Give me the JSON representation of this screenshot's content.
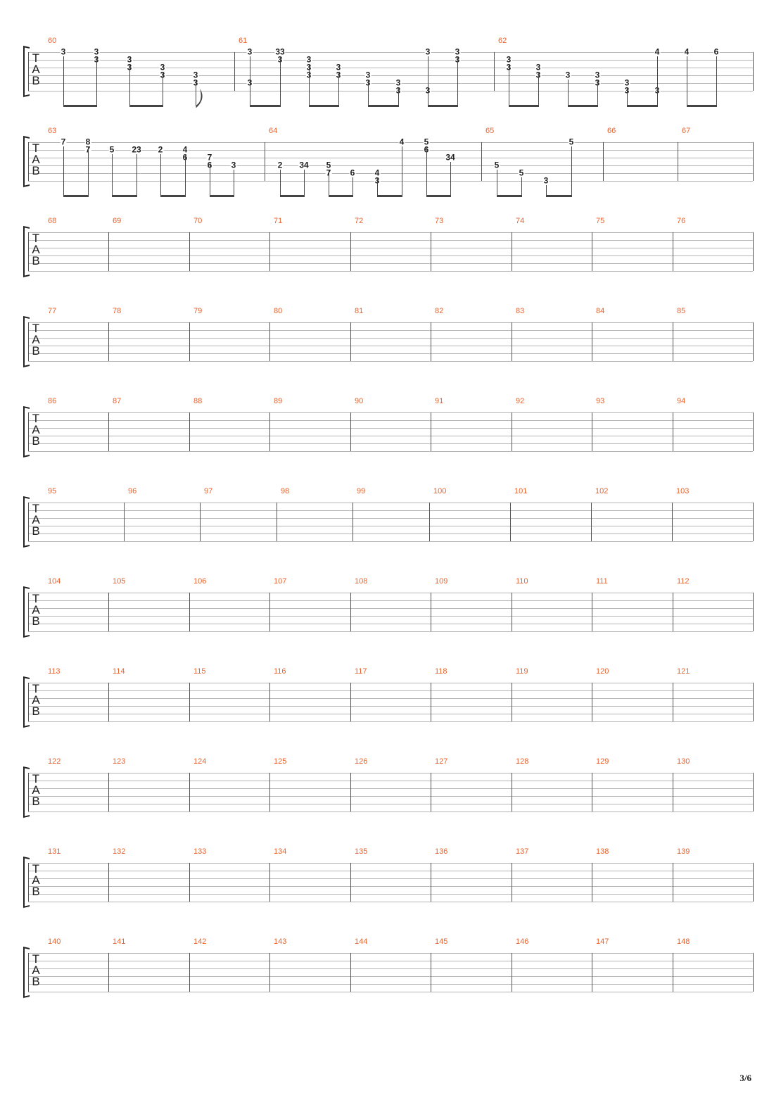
{
  "tab_label": [
    "T",
    "A",
    "B"
  ],
  "page_number": "3/6",
  "systems": [
    {
      "measures": [
        {
          "number": "60",
          "notes": [
            {
              "pos": 0,
              "frets": [
                [
                  0,
                  "3"
                ]
              ]
            },
            {
              "pos": 1,
              "frets": [
                [
                  0,
                  "3"
                ],
                [
                  1,
                  "3"
                ]
              ]
            },
            {
              "pos": 2,
              "frets": [
                [
                  1,
                  "3"
                ],
                [
                  2,
                  "3"
                ]
              ]
            },
            {
              "pos": 3,
              "frets": [
                [
                  2,
                  "3"
                ],
                [
                  3,
                  "3"
                ]
              ]
            },
            {
              "pos": 4,
              "frets": [
                [
                  3,
                  "3"
                ],
                [
                  4,
                  "3"
                ]
              ]
            }
          ]
        },
        {
          "number": "61",
          "notes": [
            {
              "pos": 0,
              "frets": [
                [
                  0,
                  "3"
                ],
                [
                  4,
                  "3"
                ]
              ]
            },
            {
              "pos": 1,
              "frets": [
                [
                  0,
                  "33"
                ],
                [
                  1,
                  "3"
                ]
              ]
            },
            {
              "pos": 2,
              "frets": [
                [
                  1,
                  "3"
                ],
                [
                  2,
                  "3"
                ],
                [
                  3,
                  "3"
                ]
              ]
            },
            {
              "pos": 3,
              "frets": [
                [
                  2,
                  "3"
                ],
                [
                  3,
                  "3"
                ]
              ]
            },
            {
              "pos": 4,
              "frets": [
                [
                  3,
                  "3"
                ],
                [
                  4,
                  "3"
                ]
              ]
            },
            {
              "pos": 5,
              "frets": [
                [
                  4,
                  "3"
                ],
                [
                  5,
                  "3"
                ]
              ]
            },
            {
              "pos": 6,
              "frets": [
                [
                  0,
                  "3"
                ],
                [
                  5,
                  "3"
                ]
              ]
            },
            {
              "pos": 7,
              "frets": [
                [
                  0,
                  "3"
                ],
                [
                  1,
                  "3"
                ]
              ]
            }
          ]
        },
        {
          "number": "62",
          "notes": [
            {
              "pos": 0,
              "frets": [
                [
                  1,
                  "3"
                ],
                [
                  2,
                  "3"
                ]
              ]
            },
            {
              "pos": 1,
              "frets": [
                [
                  2,
                  "3"
                ],
                [
                  3,
                  "3"
                ]
              ]
            },
            {
              "pos": 2,
              "frets": [
                [
                  3,
                  "3"
                ]
              ]
            },
            {
              "pos": 3,
              "frets": [
                [
                  3,
                  "3"
                ],
                [
                  4,
                  "3"
                ]
              ]
            },
            {
              "pos": 4,
              "frets": [
                [
                  4,
                  "3"
                ],
                [
                  5,
                  "3"
                ]
              ]
            },
            {
              "pos": 5,
              "frets": [
                [
                  0,
                  "4"
                ],
                [
                  5,
                  "3"
                ]
              ]
            },
            {
              "pos": 6,
              "frets": [
                [
                  0,
                  "4"
                ]
              ]
            },
            {
              "pos": 7,
              "frets": [
                [
                  0,
                  "6"
                ]
              ]
            }
          ]
        }
      ]
    },
    {
      "measures": [
        {
          "number": "63",
          "notes": [
            {
              "pos": 0,
              "frets": [
                [
                  0,
                  "7"
                ]
              ]
            },
            {
              "pos": 1,
              "frets": [
                [
                  0,
                  "8"
                ],
                [
                  1,
                  "7"
                ]
              ]
            },
            {
              "pos": 2,
              "frets": [
                [
                  1,
                  "5"
                ]
              ]
            },
            {
              "pos": 3,
              "frets": [
                [
                  1,
                  "23"
                ]
              ]
            },
            {
              "pos": 4,
              "frets": [
                [
                  1,
                  "2"
                ]
              ]
            },
            {
              "pos": 5,
              "frets": [
                [
                  1,
                  "4"
                ],
                [
                  2,
                  "6"
                ]
              ]
            },
            {
              "pos": 6,
              "frets": [
                [
                  2,
                  "7"
                ],
                [
                  3,
                  "6"
                ]
              ]
            },
            {
              "pos": 7,
              "frets": [
                [
                  3,
                  "3"
                ]
              ]
            }
          ]
        },
        {
          "number": "64",
          "notes": [
            {
              "pos": 0,
              "frets": [
                [
                  3,
                  "2"
                ]
              ]
            },
            {
              "pos": 1,
              "frets": [
                [
                  3,
                  "34"
                ]
              ]
            },
            {
              "pos": 2,
              "frets": [
                [
                  3,
                  "5"
                ],
                [
                  4,
                  "7"
                ]
              ]
            },
            {
              "pos": 3,
              "frets": [
                [
                  4,
                  "6"
                ]
              ]
            },
            {
              "pos": 4,
              "frets": [
                [
                  4,
                  "4"
                ],
                [
                  5,
                  "3"
                ]
              ]
            },
            {
              "pos": 5,
              "frets": [
                [
                  0,
                  "4"
                ]
              ]
            },
            {
              "pos": 6,
              "frets": [
                [
                  0,
                  "5"
                ],
                [
                  1,
                  "6"
                ]
              ]
            },
            {
              "pos": 7,
              "frets": [
                [
                  2,
                  "34"
                ]
              ]
            }
          ]
        },
        {
          "number": "65",
          "notes": [
            {
              "pos": 0,
              "frets": [
                [
                  3,
                  "5"
                ]
              ]
            },
            {
              "pos": 1,
              "frets": [
                [
                  4,
                  "5"
                ]
              ]
            },
            {
              "pos": 2,
              "frets": [
                [
                  5,
                  "3"
                ]
              ]
            },
            {
              "pos": 3,
              "frets": [
                [
                  0,
                  "5"
                ]
              ]
            }
          ]
        },
        {
          "number": "66",
          "notes": []
        },
        {
          "number": "67",
          "notes": []
        }
      ]
    },
    {
      "measures": [
        {
          "number": "68"
        },
        {
          "number": "69"
        },
        {
          "number": "70"
        },
        {
          "number": "71"
        },
        {
          "number": "72"
        },
        {
          "number": "73"
        },
        {
          "number": "74"
        },
        {
          "number": "75"
        },
        {
          "number": "76"
        }
      ]
    },
    {
      "measures": [
        {
          "number": "77"
        },
        {
          "number": "78"
        },
        {
          "number": "79"
        },
        {
          "number": "80"
        },
        {
          "number": "81"
        },
        {
          "number": "82"
        },
        {
          "number": "83"
        },
        {
          "number": "84"
        },
        {
          "number": "85"
        }
      ]
    },
    {
      "measures": [
        {
          "number": "86"
        },
        {
          "number": "87"
        },
        {
          "number": "88"
        },
        {
          "number": "89"
        },
        {
          "number": "90"
        },
        {
          "number": "91"
        },
        {
          "number": "92"
        },
        {
          "number": "93"
        },
        {
          "number": "94"
        }
      ]
    },
    {
      "measures": [
        {
          "number": "95"
        },
        {
          "number": "96"
        },
        {
          "number": "97"
        },
        {
          "number": "98"
        },
        {
          "number": "99"
        },
        {
          "number": "100"
        },
        {
          "number": "101"
        },
        {
          "number": "102"
        },
        {
          "number": "103"
        }
      ]
    },
    {
      "measures": [
        {
          "number": "104"
        },
        {
          "number": "105"
        },
        {
          "number": "106"
        },
        {
          "number": "107"
        },
        {
          "number": "108"
        },
        {
          "number": "109"
        },
        {
          "number": "110"
        },
        {
          "number": "111"
        },
        {
          "number": "112"
        }
      ]
    },
    {
      "measures": [
        {
          "number": "113"
        },
        {
          "number": "114"
        },
        {
          "number": "115"
        },
        {
          "number": "116"
        },
        {
          "number": "117"
        },
        {
          "number": "118"
        },
        {
          "number": "119"
        },
        {
          "number": "120"
        },
        {
          "number": "121"
        }
      ]
    },
    {
      "measures": [
        {
          "number": "122"
        },
        {
          "number": "123"
        },
        {
          "number": "124"
        },
        {
          "number": "125"
        },
        {
          "number": "126"
        },
        {
          "number": "127"
        },
        {
          "number": "128"
        },
        {
          "number": "129"
        },
        {
          "number": "130"
        }
      ]
    },
    {
      "measures": [
        {
          "number": "131"
        },
        {
          "number": "132"
        },
        {
          "number": "133"
        },
        {
          "number": "134"
        },
        {
          "number": "135"
        },
        {
          "number": "136"
        },
        {
          "number": "137"
        },
        {
          "number": "138"
        },
        {
          "number": "139"
        }
      ]
    },
    {
      "measures": [
        {
          "number": "140"
        },
        {
          "number": "141"
        },
        {
          "number": "142"
        },
        {
          "number": "143"
        },
        {
          "number": "144"
        },
        {
          "number": "145"
        },
        {
          "number": "146"
        },
        {
          "number": "147"
        },
        {
          "number": "148"
        }
      ]
    }
  ]
}
